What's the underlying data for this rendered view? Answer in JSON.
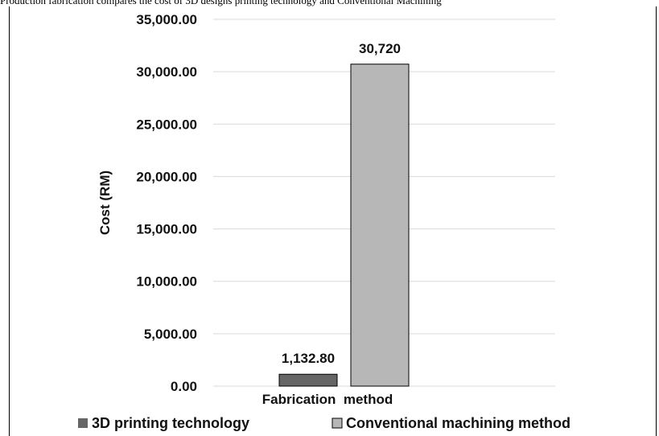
{
  "caption_fragment": "Production fabrication compares the cost of 3D designs printing technology and Conventional Machining",
  "chart_data": {
    "type": "bar",
    "categories": [
      "Fabrication method"
    ],
    "series": [
      {
        "name": "3D printing technology",
        "values": [
          1132.8
        ],
        "label": "1,132.80",
        "color": "#666666"
      },
      {
        "name": "Conventional machining method",
        "values": [
          30720
        ],
        "label": "30,720",
        "color": "#b7b7b7"
      }
    ],
    "xlabel": "Fabrication  method",
    "ylabel": "Cost (RM)",
    "ylim": [
      0,
      35000
    ],
    "yticks": [
      0,
      5000,
      10000,
      15000,
      20000,
      25000,
      30000,
      35000
    ],
    "ytick_labels": [
      "0.00",
      "5,000.00",
      "10,000.00",
      "15,000.00",
      "20,000.00",
      "25,000.00",
      "30,000.00",
      "35,000.00"
    ],
    "grid": true,
    "legend_position": "bottom"
  }
}
